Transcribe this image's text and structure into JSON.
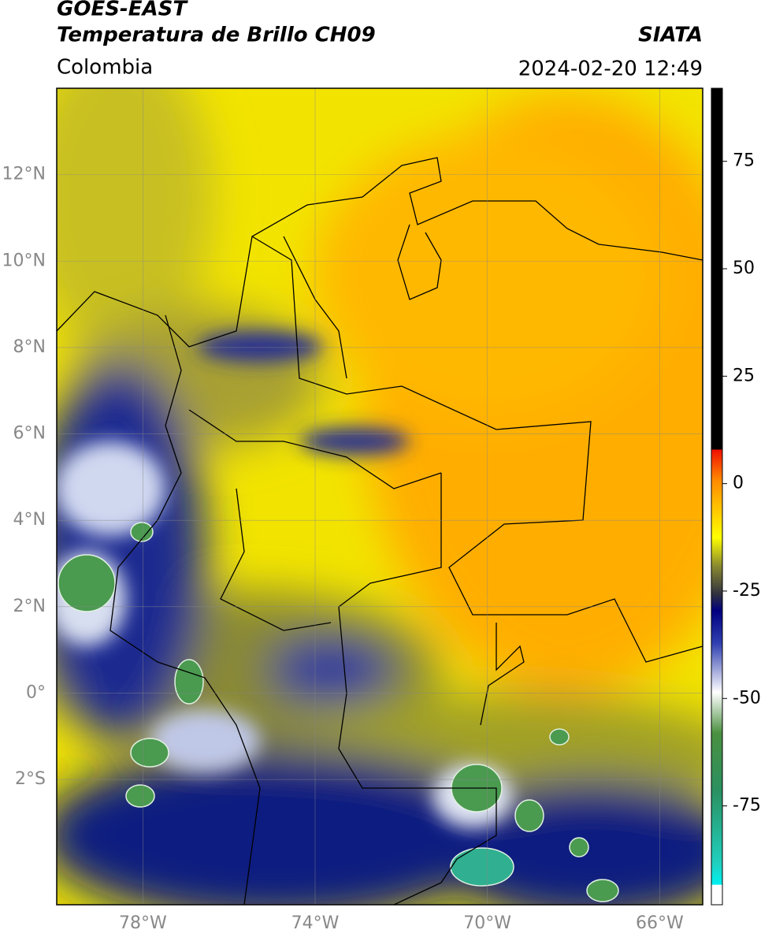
{
  "header": {
    "title_line1": "GOES-EAST",
    "title_line2": "Temperatura de Brillo CH09",
    "region": "Colombia",
    "source": "SIATA",
    "datetime": "2024-02-20 12:49"
  },
  "map": {
    "latlim": [
      -4.9,
      14
    ],
    "lonlim": [
      -80,
      -65
    ],
    "grid": true,
    "lat_ticks": [
      {
        "value": 12,
        "label": "12°N"
      },
      {
        "value": 10,
        "label": "10°N"
      },
      {
        "value": 8,
        "label": "8°N"
      },
      {
        "value": 6,
        "label": "6°N"
      },
      {
        "value": 4,
        "label": "4°N"
      },
      {
        "value": 2,
        "label": "2°N"
      },
      {
        "value": 0,
        "label": "0°"
      },
      {
        "value": -2,
        "label": "2°S"
      }
    ],
    "lon_ticks": [
      {
        "value": -78,
        "label": "78°W"
      },
      {
        "value": -74,
        "label": "74°W"
      },
      {
        "value": -70,
        "label": "70°W"
      },
      {
        "value": -66,
        "label": "66°W"
      }
    ]
  },
  "colorbar": {
    "lim": [
      -98,
      92
    ],
    "ticks": [
      75,
      50,
      25,
      0,
      -25,
      -50,
      -75
    ]
  }
}
